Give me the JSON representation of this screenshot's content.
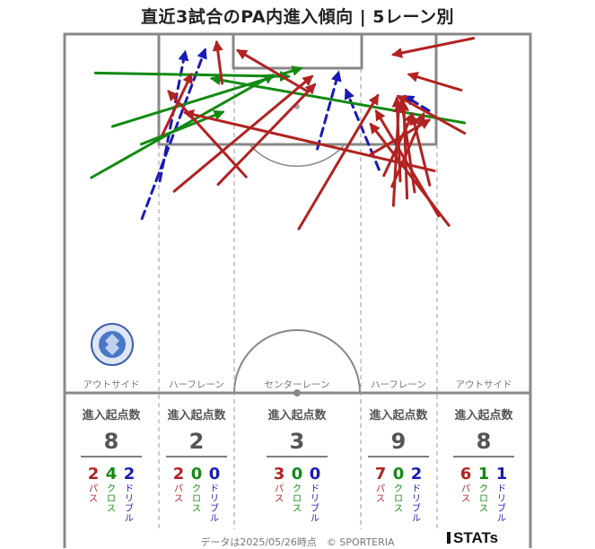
{
  "title": "直近3試合のPA内進入傾向 | 5レーン別",
  "footer": "データは2025/05/26時点　© SPORTERIA",
  "brand": "STATs",
  "colors": {
    "pass": "#b22222",
    "cross": "#138a13",
    "dribble": "#1a1ab8",
    "line": "#888888",
    "divider": "#999999"
  },
  "lanes": [
    {
      "name": "アウトサイド",
      "start_label": "進入起点数",
      "total": "8",
      "pass": "2",
      "cross": "4",
      "dribble": "2"
    },
    {
      "name": "ハーフレーン",
      "start_label": "進入起点数",
      "total": "2",
      "pass": "2",
      "cross": "0",
      "dribble": "0"
    },
    {
      "name": "センターレーン",
      "start_label": "進入起点数",
      "total": "3",
      "pass": "3",
      "cross": "0",
      "dribble": "0"
    },
    {
      "name": "ハーフレーン",
      "start_label": "進入起点数",
      "total": "9",
      "pass": "7",
      "cross": "0",
      "dribble": "2"
    },
    {
      "name": "アウトサイド",
      "start_label": "進入起点数",
      "total": "8",
      "pass": "6",
      "cross": "1",
      "dribble": "1"
    }
  ],
  "type_labels": {
    "pass": "パス",
    "cross": "クロス",
    "dribble": "ドリブル"
  },
  "chart_data": {
    "type": "arrow-map",
    "note_units": "pitch coordinates: x 0-68 across width, y 0-52.5 from goal line downward",
    "arrows": [
      {
        "type": "dribble",
        "from": [
          13.9,
          21.5
        ],
        "to": [
          17.6,
          2.6
        ]
      },
      {
        "type": "dribble",
        "from": [
          11.3,
          27.0
        ],
        "to": [
          20.5,
          2.3
        ]
      },
      {
        "type": "dribble",
        "from": [
          45.9,
          19.8
        ],
        "to": [
          41.1,
          8.2
        ]
      },
      {
        "type": "dribble",
        "from": [
          36.9,
          16.8
        ],
        "to": [
          40.0,
          5.6
        ]
      },
      {
        "type": "dribble",
        "from": [
          53.2,
          11.2
        ],
        "to": [
          49.7,
          9.1
        ]
      },
      {
        "type": "cross",
        "from": [
          4.5,
          5.7
        ],
        "to": [
          32.7,
          6.2
        ]
      },
      {
        "type": "cross",
        "from": [
          7.0,
          13.5
        ],
        "to": [
          34.5,
          5.0
        ]
      },
      {
        "type": "cross",
        "from": [
          3.9,
          21.0
        ],
        "to": [
          30.4,
          6.0
        ]
      },
      {
        "type": "cross",
        "from": [
          11.2,
          16.1
        ],
        "to": [
          23.1,
          11.4
        ]
      },
      {
        "type": "cross",
        "from": [
          58.4,
          13.0
        ],
        "to": [
          21.5,
          6.5
        ]
      },
      {
        "type": "pass",
        "from": [
          34.2,
          28.5
        ],
        "to": [
          45.7,
          9.0
        ]
      },
      {
        "type": "pass",
        "from": [
          56.1,
          28.0
        ],
        "to": [
          44.7,
          13.2
        ]
      },
      {
        "type": "pass",
        "from": [
          54.6,
          26.6
        ],
        "to": [
          45.5,
          11.3
        ]
      },
      {
        "type": "pass",
        "from": [
          58.4,
          14.5
        ],
        "to": [
          48.7,
          9.1
        ]
      },
      {
        "type": "pass",
        "from": [
          57.9,
          8.2
        ],
        "to": [
          50.3,
          5.9
        ]
      },
      {
        "type": "pass",
        "from": [
          59.7,
          0.6
        ],
        "to": [
          48.0,
          3.0
        ]
      },
      {
        "type": "pass",
        "from": [
          50.0,
          24.0
        ],
        "to": [
          49.5,
          10.0
        ]
      },
      {
        "type": "pass",
        "from": [
          48.0,
          25.1
        ],
        "to": [
          48.8,
          10.2
        ]
      },
      {
        "type": "pass",
        "from": [
          51.1,
          23.1
        ],
        "to": [
          49.2,
          9.7
        ]
      },
      {
        "type": "pass",
        "from": [
          49.0,
          21.5
        ],
        "to": [
          48.5,
          9.4
        ]
      },
      {
        "type": "pass",
        "from": [
          46.6,
          20.7
        ],
        "to": [
          50.8,
          11.7
        ]
      },
      {
        "type": "pass",
        "from": [
          47.8,
          22.3
        ],
        "to": [
          52.4,
          11.7
        ]
      },
      {
        "type": "pass",
        "from": [
          53.3,
          22.1
        ],
        "to": [
          50.8,
          12.0
        ]
      },
      {
        "type": "pass",
        "from": [
          44.7,
          17.6
        ],
        "to": [
          53.2,
          12.6
        ]
      },
      {
        "type": "pass",
        "from": [
          22.4,
          22.0
        ],
        "to": [
          36.5,
          7.4
        ]
      },
      {
        "type": "pass",
        "from": [
          16.0,
          23.0
        ],
        "to": [
          36.1,
          6.2
        ]
      },
      {
        "type": "pass",
        "from": [
          23.0,
          7.2
        ],
        "to": [
          22.2,
          1.2
        ]
      },
      {
        "type": "pass",
        "from": [
          35.5,
          8.4
        ],
        "to": [
          25.3,
          2.4
        ]
      },
      {
        "type": "pass",
        "from": [
          14.3,
          14.7
        ],
        "to": [
          18.5,
          5.9
        ]
      },
      {
        "type": "pass",
        "from": [
          26.5,
          20.9
        ],
        "to": [
          15.2,
          8.4
        ]
      },
      {
        "type": "pass",
        "from": [
          54.0,
          20.0
        ],
        "to": [
          17.6,
          11.5
        ]
      }
    ]
  }
}
